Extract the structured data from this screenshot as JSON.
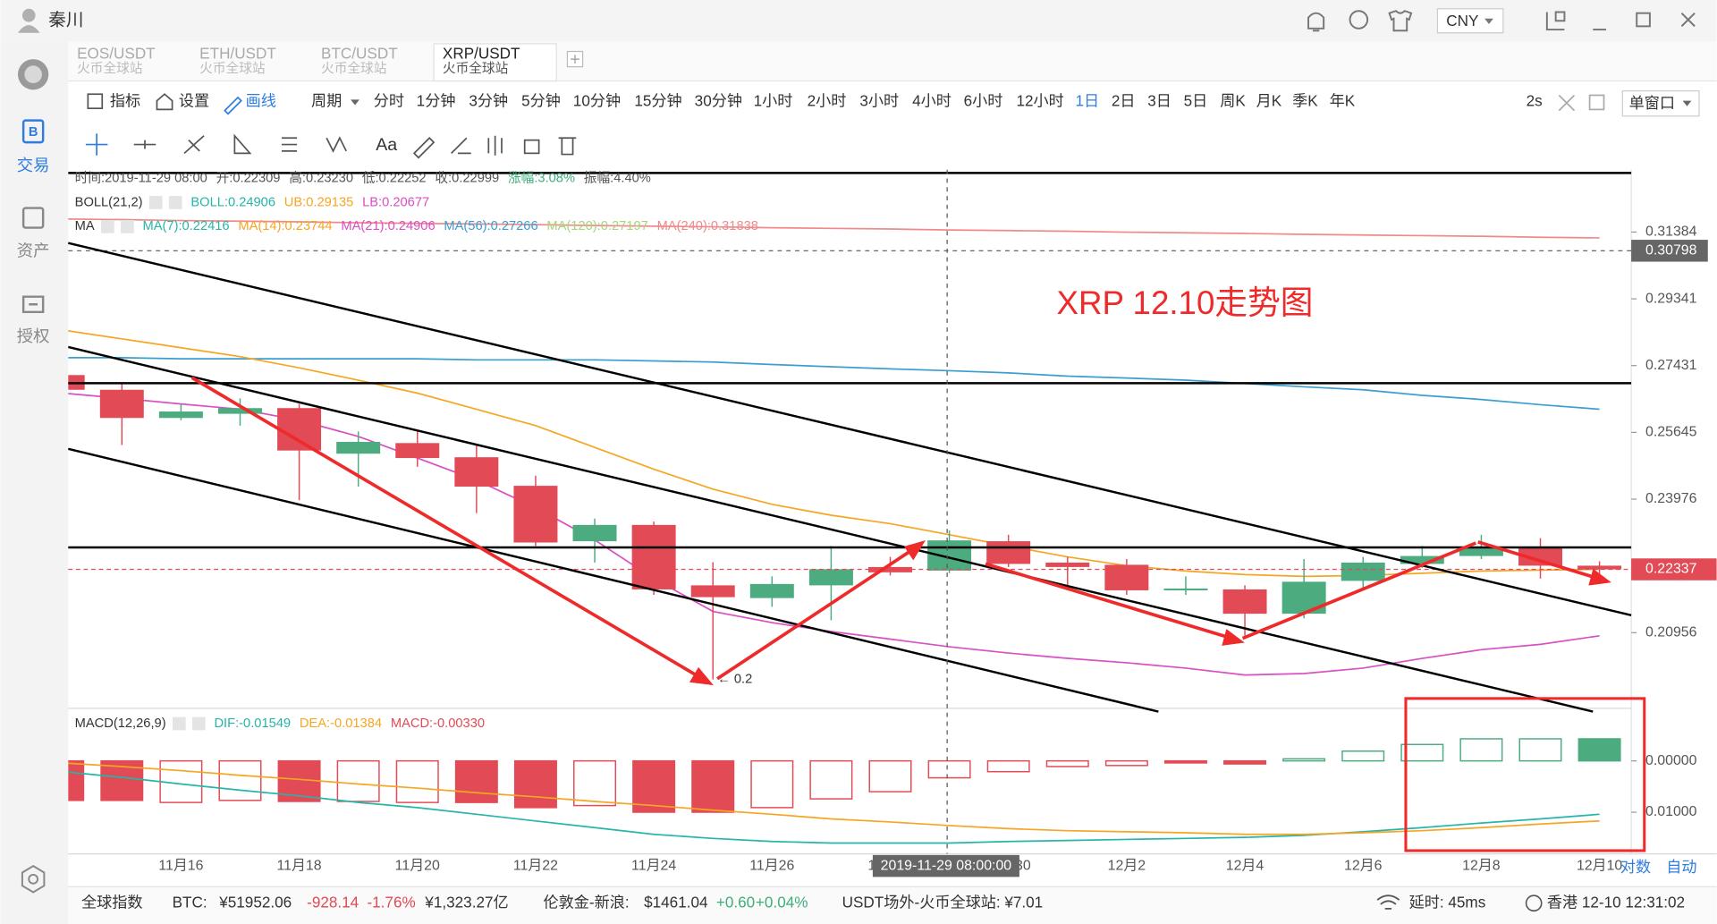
{
  "titlebar": {
    "user": "秦川",
    "currency": "CNY"
  },
  "sidebar": {
    "items": [
      "交易",
      "资产",
      "授权"
    ]
  },
  "tabs": [
    {
      "pair": "EOS/USDT",
      "exchange": "火币全球站"
    },
    {
      "pair": "ETH/USDT",
      "exchange": "火币全球站"
    },
    {
      "pair": "BTC/USDT",
      "exchange": "火币全球站"
    },
    {
      "pair": "XRP/USDT",
      "exchange": "火币全球站"
    }
  ],
  "active_tab": "XRP/USDT",
  "toolbar": {
    "indicator": "指标",
    "settings": "设置",
    "draw": "画线",
    "period": "周期",
    "periods": [
      "分时",
      "1分钟",
      "3分钟",
      "5分钟",
      "10分钟",
      "15分钟",
      "30分钟",
      "1小时",
      "2小时",
      "3小时",
      "4小时",
      "6小时",
      "12小时",
      "1日",
      "2日",
      "3日",
      "5日",
      "周K",
      "月K",
      "季K",
      "年K"
    ],
    "active_period": "1日",
    "refresh": "2s",
    "window": "单窗口"
  },
  "tools": {
    "font": "Aa"
  },
  "chart_data": {
    "type": "candlestick",
    "title": "XRP 12.10走势图",
    "categories": [
      null,
      null,
      "11月16",
      null,
      "11月18",
      null,
      "11月20",
      null,
      "11月22",
      null,
      "11月24",
      null,
      "11月26",
      null,
      "11月28",
      null,
      "11月30",
      null,
      "12月2",
      null,
      "12月4",
      null,
      "12月6",
      null,
      "12月8",
      null,
      "12月10"
    ],
    "open": [
      0.2717,
      0.2677,
      0.2602,
      0.2613,
      0.2628,
      0.251,
      0.2537,
      0.2501,
      0.243,
      0.2298,
      0.2336,
      0.2198,
      0.217,
      0.2198,
      0.2239,
      0.22309,
      0.2298,
      0.2249,
      0.2244,
      0.2187,
      0.2189,
      0.2136,
      0.2208,
      0.2246,
      0.2264,
      0.2282,
      0.2242
    ],
    "high": [
      0.2726,
      0.2697,
      0.2639,
      0.2654,
      0.2639,
      0.2567,
      0.2567,
      0.2532,
      0.2455,
      0.2351,
      0.2344,
      0.225,
      0.2218,
      0.2287,
      0.2262,
      0.2323,
      0.2313,
      0.2262,
      0.2257,
      0.2218,
      0.2198,
      0.2257,
      0.2262,
      0.2287,
      0.2313,
      0.2305,
      0.2252
    ],
    "low": [
      0.2668,
      0.2532,
      0.2596,
      0.2582,
      0.2395,
      0.2428,
      0.2477,
      0.2364,
      0.2287,
      0.2249,
      0.2177,
      0.1999,
      0.2151,
      0.2122,
      0.222,
      0.22252,
      0.2239,
      0.2189,
      0.2177,
      0.2177,
      0.2089,
      0.2126,
      0.2189,
      0.2237,
      0.2257,
      0.2213,
      0.2222
    ],
    "close": [
      0.2677,
      0.2602,
      0.2619,
      0.2628,
      0.2518,
      0.254,
      0.2499,
      0.2428,
      0.2295,
      0.2336,
      0.2189,
      0.2172,
      0.2201,
      0.2234,
      0.2227,
      0.22999,
      0.2246,
      0.2239,
      0.2187,
      0.2191,
      0.2136,
      0.2206,
      0.2249,
      0.2264,
      0.2282,
      0.2242,
      0.22337
    ],
    "up_color": "#4dab80",
    "down_color": "#e24a55",
    "log": true,
    "ylim": [
      0.1946,
      0.3342
    ],
    "yticks": [
      0.31384,
      0.29341,
      0.27431,
      0.25645,
      0.23976,
      0.20956
    ],
    "current_price": 0.22337,
    "crosshair_price": 0.30798,
    "crosshair_label": "2019-11-29 08:00:00",
    "annotation": "← 0.2",
    "overlays": [
      {
        "color": "#f08a8a",
        "values": [
          0.318,
          0.3178,
          0.3175,
          0.3173,
          0.3171,
          0.3168,
          0.3166,
          0.3164,
          0.3162,
          0.3159,
          0.3157,
          0.3155,
          0.3152,
          0.315,
          0.3148,
          0.3145,
          0.3143,
          0.3141,
          0.3138,
          0.3136,
          0.3134,
          0.3131,
          0.3129,
          0.3127,
          0.3125,
          0.3122,
          0.312
        ]
      },
      {
        "color": "#3a9fd0",
        "values": [
          0.2765,
          0.2765,
          0.2762,
          0.2762,
          0.2762,
          0.2762,
          0.2762,
          0.2759,
          0.2759,
          0.2759,
          0.2756,
          0.2753,
          0.2746,
          0.274,
          0.2734,
          0.2729,
          0.2723,
          0.2714,
          0.2709,
          0.2703,
          0.2694,
          0.2685,
          0.2677,
          0.2662,
          0.2651,
          0.2637,
          0.2625
        ]
      },
      {
        "color": "#f5a623",
        "values": [
          0.2843,
          0.2818,
          0.2793,
          0.2768,
          0.2737,
          0.2703,
          0.2668,
          0.2625,
          0.2582,
          0.2526,
          0.2471,
          0.2422,
          0.2385,
          0.2359,
          0.2339,
          0.2313,
          0.2287,
          0.2262,
          0.2242,
          0.223,
          0.2222,
          0.2218,
          0.222,
          0.2225,
          0.223,
          0.2232,
          0.2234
        ]
      },
      {
        "color": "#d94fc4",
        "values": [
          0.2668,
          0.2654,
          0.2639,
          0.2625,
          0.2596,
          0.2554,
          0.2499,
          0.2444,
          0.2377,
          0.2301,
          0.2213,
          0.2141,
          0.2117,
          0.2098,
          0.2082,
          0.2066,
          0.2053,
          0.2042,
          0.2033,
          0.2022,
          0.2008,
          0.2011,
          0.2022,
          0.2042,
          0.206,
          0.2071,
          0.2089
        ]
      }
    ],
    "info": [
      {
        "text": "时间:2019-11-29 08:00",
        "color": "#555555"
      },
      {
        "text": "开:0.22309",
        "color": "#555555"
      },
      {
        "text": "高:0.23230",
        "color": "#555555"
      },
      {
        "text": "低:0.22252",
        "color": "#555555"
      },
      {
        "text": "收:0.22999",
        "color": "#555555"
      },
      {
        "text": "涨幅:3.08%",
        "color": "#3fae7a"
      },
      {
        "text": "振幅:4.40%",
        "color": "#555555"
      }
    ],
    "boll": {
      "label": "BOLL(21,2)",
      "items": [
        {
          "text": "BOLL:0.24906",
          "color": "#26b5a8"
        },
        {
          "text": "UB:0.29135",
          "color": "#f5a623"
        },
        {
          "text": "LB:0.20677",
          "color": "#d94fc4"
        }
      ]
    },
    "ma": {
      "label": "MA",
      "items": [
        {
          "text": "MA(7):0.22416",
          "color": "#26b5a8"
        },
        {
          "text": "MA(14):0.23744",
          "color": "#f5a623"
        },
        {
          "text": "MA(21):0.24906",
          "color": "#d94fc4"
        },
        {
          "text": "MA(56):0.27266",
          "color": "#3a9fd0"
        },
        {
          "text": "MA(120):0.27197",
          "color": "#a5d67a"
        },
        {
          "text": "MA(240):0.31838",
          "color": "#f08a8a"
        }
      ]
    },
    "macd": {
      "label": "MACD(12,26,9)",
      "items": [
        {
          "text": "DIF:-0.01549",
          "color": "#26b5a8"
        },
        {
          "text": "DEA:-0.01384",
          "color": "#f5a623"
        },
        {
          "text": "MACD:-0.00330",
          "color": "#e24a55"
        }
      ],
      "values": [
        -0.0077,
        -0.0077,
        -0.0081,
        -0.0077,
        -0.0079,
        -0.0079,
        -0.0081,
        -0.0081,
        -0.0091,
        -0.0087,
        -0.01,
        -0.01,
        -0.0091,
        -0.0074,
        -0.006,
        -0.0033,
        -0.0021,
        -0.0011,
        -0.0009,
        -0.0004,
        -0.0006,
        0.0004,
        0.0019,
        0.0032,
        0.0043,
        0.0043,
        0.0043
      ],
      "hollow": [
        false,
        false,
        true,
        true,
        false,
        true,
        true,
        false,
        false,
        true,
        false,
        false,
        true,
        true,
        true,
        true,
        true,
        true,
        true,
        false,
        false,
        true,
        true,
        true,
        true,
        true,
        false
      ],
      "dif": [
        -0.0021,
        -0.0032,
        -0.0045,
        -0.0057,
        -0.0068,
        -0.0081,
        -0.0091,
        -0.0104,
        -0.0117,
        -0.013,
        -0.0143,
        -0.0151,
        -0.0157,
        -0.016,
        -0.016,
        -0.016,
        -0.0157,
        -0.0155,
        -0.0153,
        -0.0151,
        -0.0149,
        -0.0145,
        -0.0138,
        -0.013,
        -0.0121,
        -0.0113,
        -0.0104
      ],
      "dea": [
        -0.0004,
        -0.0011,
        -0.0019,
        -0.0028,
        -0.0036,
        -0.0045,
        -0.0053,
        -0.0062,
        -0.007,
        -0.0079,
        -0.0087,
        -0.0096,
        -0.0104,
        -0.0113,
        -0.0119,
        -0.0126,
        -0.0132,
        -0.0136,
        -0.0138,
        -0.014,
        -0.0143,
        -0.0143,
        -0.014,
        -0.0136,
        -0.013,
        -0.0123,
        -0.0117
      ],
      "dif_color": "#26b5a8",
      "dea_color": "#f5a623",
      "ylim": [
        -0.0177,
        0.0096
      ],
      "yticks": [
        {
          "value": 0,
          "label": "0.00000"
        },
        {
          "value": -0.01,
          "label": "0.01000"
        }
      ]
    },
    "axis_modes": [
      "对数",
      "自动"
    ]
  },
  "status": [
    {
      "text": "全球指数",
      "color": "#333333"
    },
    {
      "text": "BTC:",
      "color": "#333333"
    },
    {
      "text": "¥51952.06",
      "color": "#333333"
    },
    {
      "text": "-928.14",
      "color": "#e24a55"
    },
    {
      "text": "-1.76%",
      "color": "#e24a55"
    },
    {
      "text": "¥1,323.27亿",
      "color": "#333333"
    },
    {
      "text": "伦敦金-新浪:",
      "color": "#333333"
    },
    {
      "text": "$1461.04",
      "color": "#333333"
    },
    {
      "text": "+0.60",
      "color": "#3fae7a"
    },
    {
      "text": "+0.04%",
      "color": "#3fae7a"
    },
    {
      "text": "USDT场外-火币全球站: ¥7.01",
      "color": "#333333"
    },
    {
      "text": "延时: 45ms",
      "color": "#333333"
    },
    {
      "text": "香港 12-10 12:31:02",
      "color": "#333333"
    }
  ]
}
